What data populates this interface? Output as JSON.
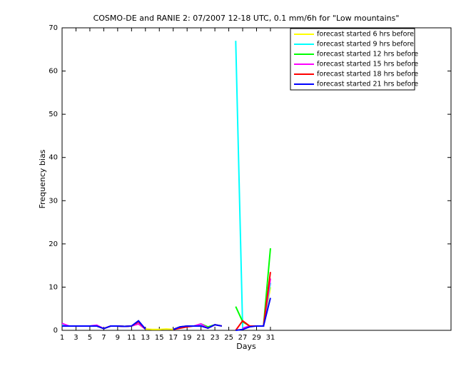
{
  "chart_data": {
    "type": "line",
    "title": "COSMO-DE and RANIE 2: 07/2007 12-18 UTC, 0.1 mm/6h for \"Low mountains\"",
    "x_label": "Days",
    "y_label": "Frequency bias",
    "x": [
      1,
      2,
      3,
      4,
      5,
      6,
      7,
      8,
      9,
      10,
      11,
      12,
      13,
      14,
      15,
      16,
      17,
      18,
      19,
      20,
      21,
      22,
      23,
      24,
      25,
      26,
      27,
      28,
      29,
      30,
      31
    ],
    "xlim": [
      1,
      57
    ],
    "xticks": [
      1,
      3,
      5,
      7,
      9,
      11,
      13,
      15,
      17,
      19,
      21,
      23,
      25,
      27,
      29,
      31
    ],
    "ylim": [
      0,
      70
    ],
    "yticks": [
      0,
      10,
      20,
      30,
      40,
      50,
      60,
      70
    ],
    "series": [
      {
        "name": "forecast started 6 hrs before",
        "color": "#ffff00",
        "values": [
          1.2,
          1,
          1,
          1,
          1,
          1,
          0.4,
          1,
          1,
          0.9,
          1,
          1.5,
          0.3,
          0.2,
          0.2,
          0.3,
          0.2,
          0.8,
          1,
          1,
          1.2,
          0.5,
          1.3,
          1,
          null,
          null,
          null,
          1,
          1,
          1,
          10
        ]
      },
      {
        "name": "forecast started 9 hrs before",
        "color": "#00ffff",
        "values": [
          1.2,
          1,
          1,
          1,
          1,
          1,
          0.4,
          1,
          1,
          0.9,
          1,
          2,
          0.3,
          null,
          null,
          null,
          0.2,
          0.8,
          1,
          1,
          1.2,
          0.5,
          1.3,
          1,
          null,
          67,
          0.5,
          1,
          1,
          1,
          11
        ]
      },
      {
        "name": "forecast started 12 hrs before",
        "color": "#00ff00",
        "values": [
          1,
          1,
          1,
          1,
          1,
          1,
          0.4,
          1,
          1,
          0.9,
          1,
          1.5,
          0.3,
          null,
          null,
          null,
          0.2,
          0.8,
          1,
          1,
          1.5,
          0.8,
          1.3,
          1,
          null,
          5.5,
          2,
          1,
          1,
          1,
          19
        ]
      },
      {
        "name": "forecast started 15 hrs before",
        "color": "#ff00ff",
        "values": [
          1.6,
          1,
          1,
          1,
          1,
          1.2,
          0.4,
          1,
          1,
          0.9,
          1,
          1.5,
          0.3,
          null,
          null,
          null,
          0.2,
          0.8,
          1,
          1,
          1.5,
          0.5,
          1.3,
          1,
          null,
          null,
          0.5,
          1,
          1,
          1,
          12
        ]
      },
      {
        "name": "forecast started 18 hrs before",
        "color": "#ff0000",
        "values": [
          1,
          1,
          1,
          1,
          1,
          1,
          0.4,
          1,
          1,
          0.9,
          1,
          2,
          0.3,
          null,
          null,
          null,
          0.2,
          0.5,
          0.8,
          1,
          1,
          0.5,
          1.3,
          1,
          null,
          0,
          2.2,
          1,
          1,
          1,
          13.5
        ]
      },
      {
        "name": "forecast started 21 hrs before",
        "color": "#0000ff",
        "values": [
          1,
          1,
          1,
          1,
          1,
          1,
          0.4,
          1,
          1,
          0.9,
          1,
          2.2,
          0.3,
          null,
          null,
          null,
          0.2,
          0.8,
          1,
          1,
          1,
          0.5,
          1.3,
          1,
          null,
          0,
          0.2,
          0.8,
          1,
          1,
          7.5
        ]
      }
    ]
  }
}
